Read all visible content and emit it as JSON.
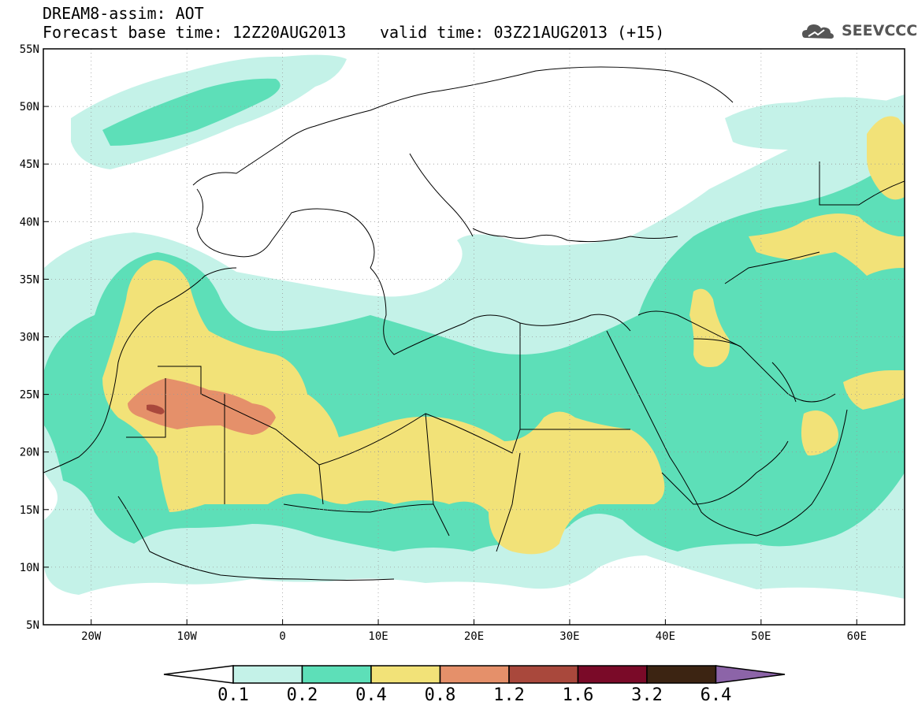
{
  "header": {
    "model_title": "DREAM8-assim: AOT",
    "base_time": "Forecast base time: 12Z20AUG2013",
    "valid_time": "valid time: 03Z21AUG2013 (+15)",
    "logo_text": "SEEVCCC"
  },
  "map": {
    "lon_range": [
      -25,
      65
    ],
    "lat_range": [
      5,
      55
    ],
    "lat_ticks": [
      "55N",
      "50N",
      "45N",
      "40N",
      "35N",
      "30N",
      "25N",
      "20N",
      "15N",
      "10N",
      "5N"
    ],
    "lon_ticks": [
      "20W",
      "10W",
      "0",
      "10E",
      "20E",
      "30E",
      "40E",
      "50E",
      "60E"
    ],
    "colors": {
      "c01": "#c4f2e8",
      "c02": "#5ddfb8",
      "c04": "#f2e278",
      "c08": "#e5906a",
      "c12": "#a9483c",
      "c16": "#7a0a28",
      "c32": "#3c2412",
      "c64": "#8c64a8"
    }
  },
  "colorbar": {
    "labels": [
      "0.1",
      "0.2",
      "0.4",
      "0.8",
      "1.2",
      "1.6",
      "3.2",
      "6.4"
    ]
  }
}
